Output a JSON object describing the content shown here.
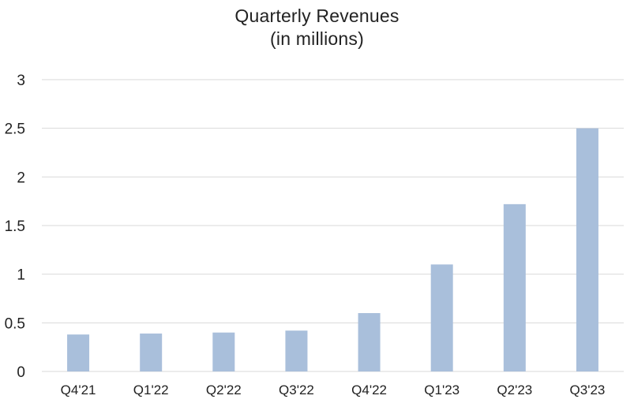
{
  "chart_data": {
    "type": "bar",
    "title": "Quarterly Revenues",
    "subtitle": "(in millions)",
    "categories": [
      "Q4'21",
      "Q1'22",
      "Q2'22",
      "Q3'22",
      "Q4'22",
      "Q1'23",
      "Q2'23",
      "Q3'23"
    ],
    "values": [
      0.38,
      0.39,
      0.4,
      0.42,
      0.6,
      1.1,
      1.72,
      2.5
    ],
    "ylim": [
      0,
      3
    ],
    "yticks": [
      "0",
      "0.5",
      "1",
      "1.5",
      "2",
      "2.5",
      "3"
    ],
    "grid": true,
    "legend": "none",
    "bar_color": "#a9bfdb",
    "grid_color": "#d9d9d9"
  }
}
